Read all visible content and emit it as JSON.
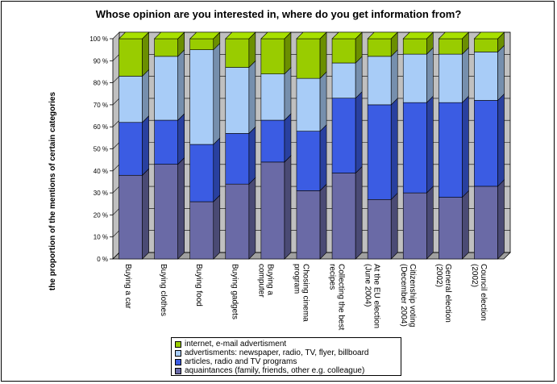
{
  "chart_data": {
    "type": "bar",
    "stacked": true,
    "normalized": true,
    "title": "Whose opinion are you interested in, where do you get information from?",
    "ylabel": "the proportion of the mentions of certain categories",
    "xlabel": "",
    "ylim": [
      0,
      100
    ],
    "yticks": [
      "0 %",
      "10 %",
      "20 %",
      "30 %",
      "40 %",
      "50 %",
      "60 %",
      "70 %",
      "80 %",
      "90 %",
      "100 %"
    ],
    "categories": [
      [
        "Buying a car"
      ],
      [
        "Buying clothes"
      ],
      [
        "Buying food"
      ],
      [
        "Buying gadgets"
      ],
      [
        "Buying a",
        "computer"
      ],
      [
        "Chosing cinema",
        "program"
      ],
      [
        "Collecting the best",
        "recipes"
      ],
      [
        "At the EU election",
        "(June 2004)"
      ],
      [
        "Citizenship voting",
        "(December 2004)"
      ],
      [
        "General election",
        "(2002)"
      ],
      [
        "Council election",
        "(2002)"
      ]
    ],
    "legend_placement": "bottom",
    "series": [
      {
        "name": "aquaintances (family, friends, other e.g. colleague)",
        "color": "#6a6aa6",
        "values": [
          38,
          43,
          26,
          34,
          44,
          31,
          39,
          27,
          30,
          28,
          33
        ]
      },
      {
        "name": "articles, radio and TV programs",
        "color": "#3b5ce3",
        "values": [
          24,
          20,
          26,
          23,
          19,
          27,
          34,
          43,
          41,
          43,
          39
        ]
      },
      {
        "name": "advertisments: newspaper, radio, TV, flyer, billboard",
        "color": "#a8ccf7",
        "values": [
          21,
          29,
          43,
          30,
          21,
          24,
          16,
          22,
          22,
          22,
          22
        ]
      },
      {
        "name": "internet, e-mail advertisment",
        "color": "#99cc00",
        "values": [
          17,
          8,
          5,
          13,
          16,
          18,
          11,
          8,
          7,
          7,
          6
        ]
      }
    ],
    "legend_order": [
      3,
      2,
      1,
      0
    ]
  }
}
